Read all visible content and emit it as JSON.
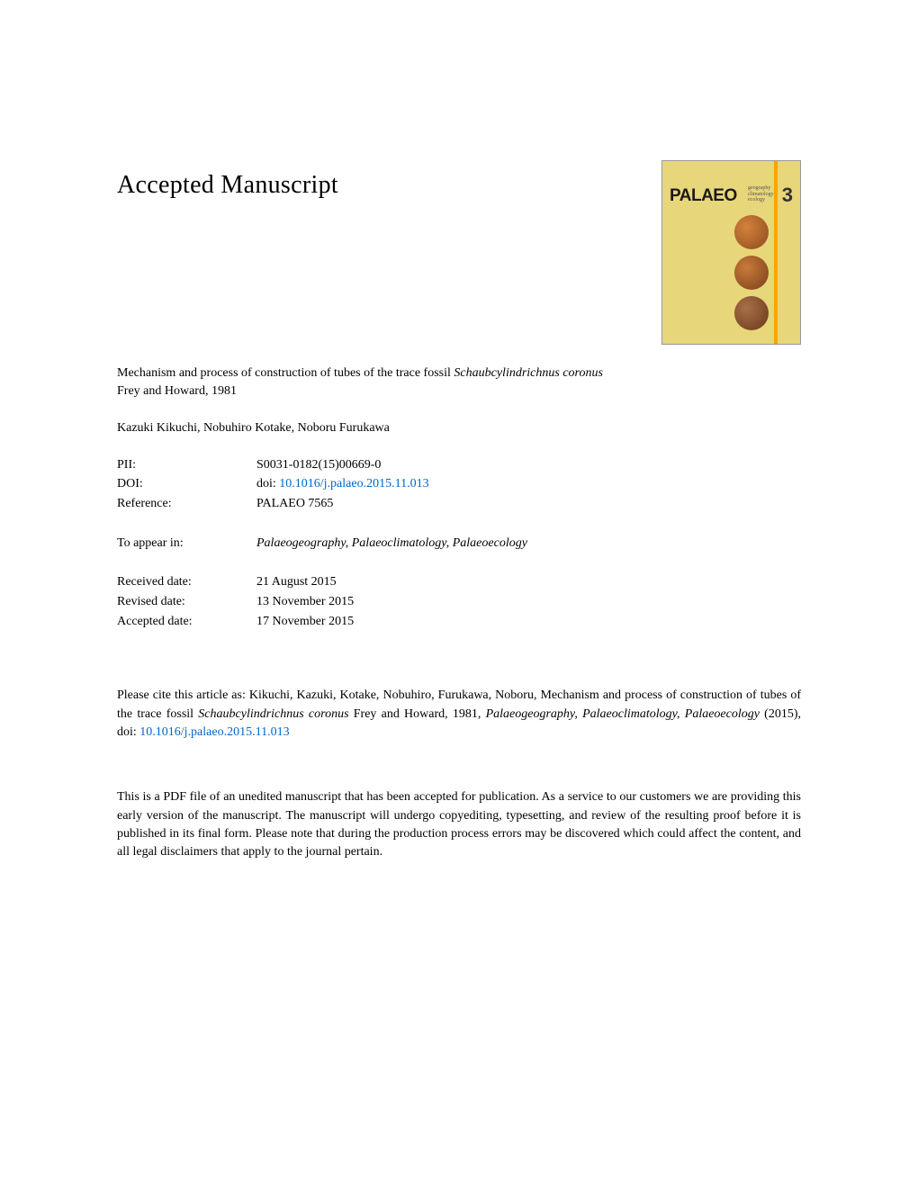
{
  "heading": "Accepted Manuscript",
  "title": {
    "prefix": "Mechanism and process of construction of tubes of the trace fossil ",
    "italic": "Schaubcylindrichnus coronus",
    "suffix": " Frey and Howard, 1981"
  },
  "authors": "Kazuki Kikuchi, Nobuhiro Kotake, Noboru Furukawa",
  "meta": {
    "pii_label": "PII:",
    "pii_value": "S0031-0182(15)00669-0",
    "doi_label": "DOI:",
    "doi_prefix": "doi: ",
    "doi_link": "10.1016/j.palaeo.2015.11.013",
    "ref_label": "Reference:",
    "ref_value": "PALAEO 7565",
    "appear_label": "To appear in:",
    "appear_value": "Palaeogeography, Palaeoclimatology, Palaeoecology",
    "received_label": "Received date:",
    "received_value": "21 August 2015",
    "revised_label": "Revised date:",
    "revised_value": "13 November 2015",
    "accepted_label": "Accepted date:",
    "accepted_value": "17 November 2015"
  },
  "cite": {
    "prefix": "Please cite this article as: Kikuchi, Kazuki, Kotake, Nobuhiro, Furukawa, Noboru, Mechanism and process of construction of tubes of the trace fossil ",
    "italic1": "Schaubcylindrichnus coronus",
    "mid": " Frey and Howard, 1981, ",
    "italic2": "Palaeogeography, Palaeoclimatology, Palaeoecology",
    "suffix": " (2015), doi: ",
    "link": "10.1016/j.palaeo.2015.11.013"
  },
  "disclaimer": "This is a PDF file of an unedited manuscript that has been accepted for publication. As a service to our customers we are providing this early version of the manuscript. The manuscript will undergo copyediting, typesetting, and review of the resulting proof before it is published in its final form. Please note that during the production process errors may be discovered which could affect the content, and all legal disclaimers that apply to the journal pertain.",
  "cover": {
    "title": "PALAEO",
    "subtext1": "geography",
    "subtext2": "climatology",
    "subtext3": "ecology",
    "number": "3",
    "background_color": "#e8d67a",
    "stripe_color": "#f7a500"
  },
  "colors": {
    "link": "#0066cc",
    "text": "#000000",
    "background": "#ffffff"
  },
  "typography": {
    "heading_fontsize": 28,
    "body_fontsize": 14,
    "font_family": "Georgia, Times New Roman, serif"
  }
}
